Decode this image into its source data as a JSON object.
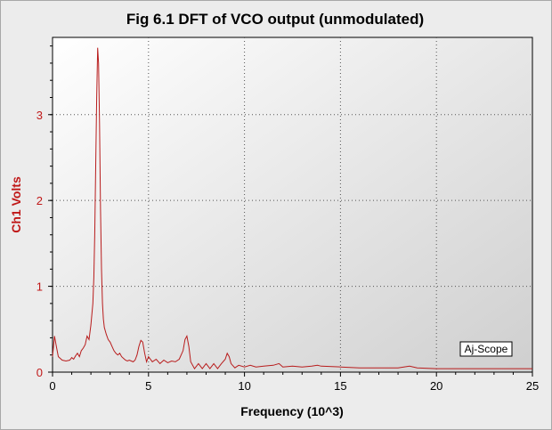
{
  "chart_data": {
    "type": "line",
    "title": "Fig 6.1 DFT of VCO output (unmodulated)",
    "xlabel": "Frequency (10^3)",
    "ylabel": "Ch1 Volts",
    "xlim": [
      0,
      25
    ],
    "ylim": [
      0,
      3.9
    ],
    "xticks": [
      "0",
      "5",
      "10",
      "15",
      "20",
      "25"
    ],
    "yticks": [
      "0",
      "1",
      "2",
      "3"
    ],
    "grid": true,
    "watermark": "Aj-Scope",
    "colors": {
      "line": "#b81c1c",
      "ytext": "#c01818",
      "plot_bg": "#ffffff",
      "plot_bg_end": "#d0d0d0"
    },
    "series": [
      {
        "x": [
          0,
          0.1,
          0.2,
          0.3,
          0.5,
          0.7,
          0.9,
          1.0,
          1.1,
          1.2,
          1.3,
          1.4,
          1.5,
          1.6,
          1.7,
          1.8,
          1.9,
          2.0,
          2.1,
          2.15,
          2.2,
          2.25,
          2.3,
          2.35,
          2.4,
          2.45,
          2.5,
          2.55,
          2.6,
          2.65,
          2.7,
          2.8,
          2.9,
          3.0,
          3.1,
          3.2,
          3.3,
          3.4,
          3.5,
          3.6,
          3.7,
          3.8,
          3.9,
          4.0,
          4.1,
          4.2,
          4.3,
          4.4,
          4.5,
          4.6,
          4.7,
          4.8,
          4.9,
          5.0,
          5.2,
          5.4,
          5.6,
          5.8,
          6.0,
          6.2,
          6.4,
          6.6,
          6.8,
          6.9,
          7.0,
          7.1,
          7.2,
          7.4,
          7.6,
          7.8,
          8.0,
          8.2,
          8.4,
          8.6,
          8.8,
          9.0,
          9.1,
          9.2,
          9.3,
          9.5,
          9.7,
          10.0,
          10.3,
          10.6,
          11.0,
          11.5,
          11.8,
          12.0,
          12.5,
          13.0,
          13.5,
          13.8,
          14.0,
          15.0,
          16.0,
          17.0,
          18.0,
          18.6,
          19.0,
          20.0,
          21.0,
          22.0,
          23.0,
          24.0,
          25.0
        ],
        "y": [
          0.18,
          0.42,
          0.3,
          0.18,
          0.14,
          0.13,
          0.14,
          0.17,
          0.15,
          0.19,
          0.22,
          0.18,
          0.25,
          0.28,
          0.32,
          0.42,
          0.38,
          0.55,
          0.8,
          1.1,
          1.6,
          2.4,
          3.2,
          3.78,
          3.6,
          2.9,
          1.9,
          1.2,
          0.8,
          0.62,
          0.52,
          0.44,
          0.38,
          0.35,
          0.3,
          0.25,
          0.22,
          0.2,
          0.22,
          0.18,
          0.16,
          0.14,
          0.13,
          0.14,
          0.13,
          0.12,
          0.14,
          0.2,
          0.3,
          0.37,
          0.35,
          0.22,
          0.12,
          0.18,
          0.12,
          0.15,
          0.1,
          0.14,
          0.11,
          0.13,
          0.12,
          0.15,
          0.25,
          0.38,
          0.42,
          0.3,
          0.12,
          0.04,
          0.1,
          0.04,
          0.1,
          0.04,
          0.1,
          0.04,
          0.1,
          0.15,
          0.22,
          0.18,
          0.1,
          0.05,
          0.08,
          0.06,
          0.08,
          0.06,
          0.07,
          0.08,
          0.1,
          0.06,
          0.07,
          0.06,
          0.07,
          0.08,
          0.07,
          0.06,
          0.05,
          0.05,
          0.05,
          0.07,
          0.05,
          0.04,
          0.04,
          0.04,
          0.04,
          0.04,
          0.04
        ]
      }
    ]
  }
}
